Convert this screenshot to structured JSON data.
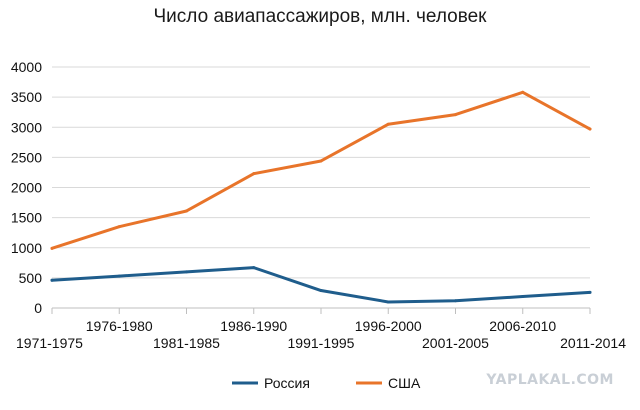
{
  "chart_data": {
    "type": "line",
    "title": "Число авиапассажиров, млн. человек",
    "categories": [
      "1971-1975",
      "1976-1980",
      "1981-1985",
      "1986-1990",
      "1991-1995",
      "1996-2000",
      "2001-2005",
      "2006-2010",
      "2011-2014"
    ],
    "series": [
      {
        "name": "Россия",
        "color": "#1f5d8c",
        "values": [
          460,
          530,
          600,
          670,
          290,
          100,
          120,
          190,
          260
        ]
      },
      {
        "name": "США",
        "color": "#e8742a",
        "values": [
          990,
          1350,
          1610,
          2230,
          2440,
          3050,
          3210,
          3580,
          2970
        ]
      }
    ],
    "xlabel": "",
    "ylabel": "",
    "ylim": [
      0,
      4000
    ],
    "yticks": [
      0,
      500,
      1000,
      1500,
      2000,
      2500,
      3000,
      3500,
      4000
    ],
    "grid": "horizontal",
    "legend": "bottom"
  },
  "watermark": "YAPLAKAL.COM"
}
